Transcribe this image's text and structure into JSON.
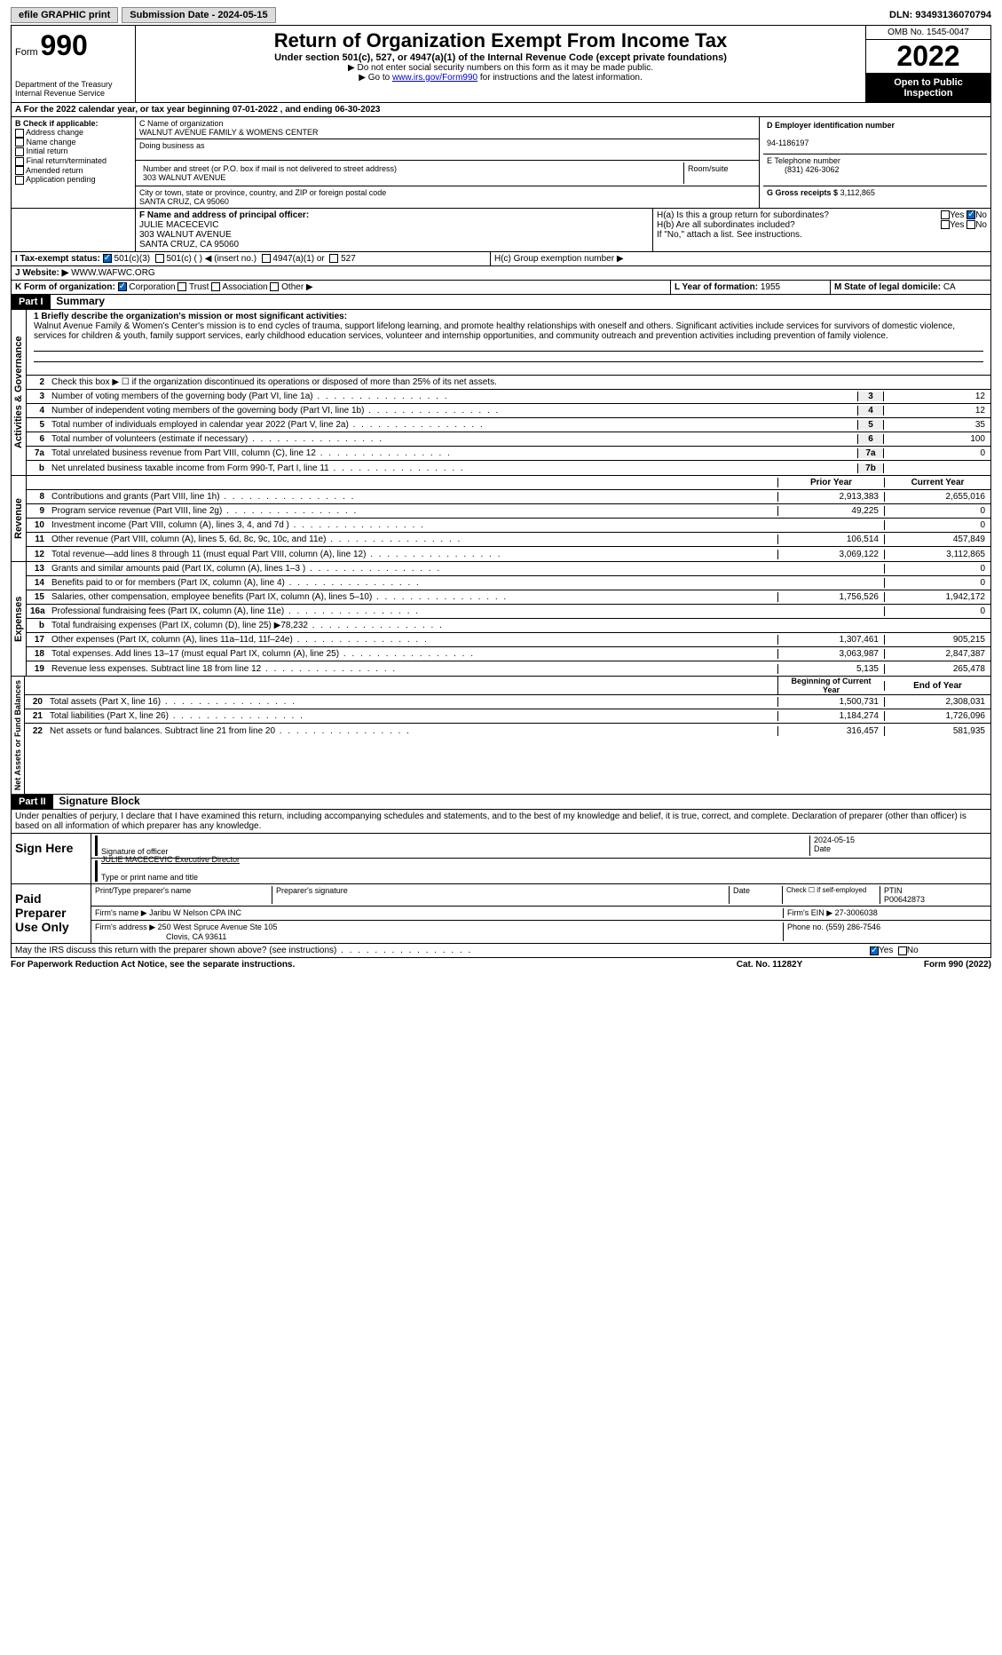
{
  "top": {
    "efile": "efile GRAPHIC print",
    "submission": "Submission Date - 2024-05-15",
    "dln": "DLN: 93493136070794"
  },
  "header": {
    "form": "Form",
    "formno": "990",
    "dept": "Department of the Treasury",
    "irs": "Internal Revenue Service",
    "title": "Return of Organization Exempt From Income Tax",
    "subtitle": "Under section 501(c), 527, or 4947(a)(1) of the Internal Revenue Code (except private foundations)",
    "note1": "Do not enter social security numbers on this form as it may be made public.",
    "note2_pre": "Go to ",
    "note2_link": "www.irs.gov/Form990",
    "note2_post": " for instructions and the latest information.",
    "omb": "OMB No. 1545-0047",
    "year": "2022",
    "open": "Open to Public Inspection"
  },
  "rowA": "A For the 2022 calendar year, or tax year beginning 07-01-2022    , and ending 06-30-2023",
  "B": {
    "label": "B Check if applicable:",
    "opts": [
      "Address change",
      "Name change",
      "Initial return",
      "Final return/terminated",
      "Amended return",
      "Application pending"
    ]
  },
  "C": {
    "name_label": "C Name of organization",
    "name": "WALNUT AVENUE FAMILY & WOMENS CENTER",
    "dba_label": "Doing business as",
    "dba": "",
    "addr_label": "Number and street (or P.O. box if mail is not delivered to street address)",
    "room_label": "Room/suite",
    "addr": "303 WALNUT AVENUE",
    "city_label": "City or town, state or province, country, and ZIP or foreign postal code",
    "city": "SANTA CRUZ, CA  95060"
  },
  "D": {
    "label": "D Employer identification number",
    "val": "94-1186197"
  },
  "E": {
    "label": "E Telephone number",
    "val": "(831) 426-3062"
  },
  "G": {
    "label": "G Gross receipts $",
    "val": "3,112,865"
  },
  "F": {
    "label": "F  Name and address of principal officer:",
    "name": "JULIE MACECEVIC",
    "addr1": "303 WALNUT AVENUE",
    "addr2": "SANTA CRUZ, CA  95060"
  },
  "H": {
    "a": "H(a)  Is this a group return for subordinates?",
    "b": "H(b)  Are all subordinates included?",
    "b_note": "If \"No,\" attach a list. See instructions.",
    "c": "H(c)  Group exemption number ▶"
  },
  "I": {
    "label": "I   Tax-exempt status:",
    "o1": "501(c)(3)",
    "o2": "501(c) (   ) ◀ (insert no.)",
    "o3": "4947(a)(1) or",
    "o4": "527"
  },
  "J": {
    "label": "J   Website: ▶",
    "val": "WWW.WAFWC.ORG"
  },
  "K": {
    "label": "K Form of organization:",
    "o1": "Corporation",
    "o2": "Trust",
    "o3": "Association",
    "o4": "Other ▶"
  },
  "L": {
    "label": "L Year of formation:",
    "val": "1955"
  },
  "M": {
    "label": "M State of legal domicile:",
    "val": "CA"
  },
  "part1": {
    "hdr": "Part I",
    "title": "Summary",
    "l1_label": "1  Briefly describe the organization's mission or most significant activities:",
    "l1_text": "Walnut Avenue Family & Women's Center's mission is to end cycles of trauma, support lifelong learning, and promote healthy relationships with oneself and others. Significant activities include services for survivors of domestic violence, services for children & youth, family support services, early childhood education services, volunteer and internship opportunities, and community outreach and prevention activities including prevention of family violence.",
    "l2": "Check this box ▶ ☐  if the organization discontinued its operations or disposed of more than 25% of its net assets.",
    "vlabel1": "Activities & Governance",
    "vlabel2": "Revenue",
    "vlabel3": "Expenses",
    "vlabel4": "Net Assets or Fund Balances",
    "lines_gov": [
      {
        "n": "3",
        "t": "Number of voting members of the governing body (Part VI, line 1a)",
        "box": "3",
        "v": "12"
      },
      {
        "n": "4",
        "t": "Number of independent voting members of the governing body (Part VI, line 1b)",
        "box": "4",
        "v": "12"
      },
      {
        "n": "5",
        "t": "Total number of individuals employed in calendar year 2022 (Part V, line 2a)",
        "box": "5",
        "v": "35"
      },
      {
        "n": "6",
        "t": "Total number of volunteers (estimate if necessary)",
        "box": "6",
        "v": "100"
      },
      {
        "n": "7a",
        "t": "Total unrelated business revenue from Part VIII, column (C), line 12",
        "box": "7a",
        "v": "0"
      },
      {
        "n": "b",
        "t": "Net unrelated business taxable income from Form 990-T, Part I, line 11",
        "box": "7b",
        "v": ""
      }
    ],
    "col_prior": "Prior Year",
    "col_curr": "Current Year",
    "lines_rev": [
      {
        "n": "8",
        "t": "Contributions and grants (Part VIII, line 1h)",
        "p": "2,913,383",
        "c": "2,655,016"
      },
      {
        "n": "9",
        "t": "Program service revenue (Part VIII, line 2g)",
        "p": "49,225",
        "c": "0"
      },
      {
        "n": "10",
        "t": "Investment income (Part VIII, column (A), lines 3, 4, and 7d )",
        "p": "",
        "c": "0"
      },
      {
        "n": "11",
        "t": "Other revenue (Part VIII, column (A), lines 5, 6d, 8c, 9c, 10c, and 11e)",
        "p": "106,514",
        "c": "457,849"
      },
      {
        "n": "12",
        "t": "Total revenue—add lines 8 through 11 (must equal Part VIII, column (A), line 12)",
        "p": "3,069,122",
        "c": "3,112,865"
      }
    ],
    "lines_exp": [
      {
        "n": "13",
        "t": "Grants and similar amounts paid (Part IX, column (A), lines 1–3 )",
        "p": "",
        "c": "0"
      },
      {
        "n": "14",
        "t": "Benefits paid to or for members (Part IX, column (A), line 4)",
        "p": "",
        "c": "0"
      },
      {
        "n": "15",
        "t": "Salaries, other compensation, employee benefits (Part IX, column (A), lines 5–10)",
        "p": "1,756,526",
        "c": "1,942,172"
      },
      {
        "n": "16a",
        "t": "Professional fundraising fees (Part IX, column (A), line 11e)",
        "p": "",
        "c": "0"
      },
      {
        "n": "b",
        "t": "Total fundraising expenses (Part IX, column (D), line 25) ▶78,232",
        "p": "shaded",
        "c": "shaded"
      },
      {
        "n": "17",
        "t": "Other expenses (Part IX, column (A), lines 11a–11d, 11f–24e)",
        "p": "1,307,461",
        "c": "905,215"
      },
      {
        "n": "18",
        "t": "Total expenses. Add lines 13–17 (must equal Part IX, column (A), line 25)",
        "p": "3,063,987",
        "c": "2,847,387"
      },
      {
        "n": "19",
        "t": "Revenue less expenses. Subtract line 18 from line 12",
        "p": "5,135",
        "c": "265,478"
      }
    ],
    "col_begin": "Beginning of Current Year",
    "col_end": "End of Year",
    "lines_net": [
      {
        "n": "20",
        "t": "Total assets (Part X, line 16)",
        "p": "1,500,731",
        "c": "2,308,031"
      },
      {
        "n": "21",
        "t": "Total liabilities (Part X, line 26)",
        "p": "1,184,274",
        "c": "1,726,096"
      },
      {
        "n": "22",
        "t": "Net assets or fund balances. Subtract line 21 from line 20",
        "p": "316,457",
        "c": "581,935"
      }
    ]
  },
  "part2": {
    "hdr": "Part II",
    "title": "Signature Block",
    "decl": "Under penalties of perjury, I declare that I have examined this return, including accompanying schedules and statements, and to the best of my knowledge and belief, it is true, correct, and complete. Declaration of preparer (other than officer) is based on all information of which preparer has any knowledge.",
    "sign_here": "Sign Here",
    "sig_officer": "Signature of officer",
    "sig_date": "2024-05-15",
    "date_label": "Date",
    "officer_name": "JULIE MACECEVIC Executive Director",
    "officer_label": "Type or print name and title",
    "paid": "Paid Preparer Use Only",
    "prep_name_label": "Print/Type preparer's name",
    "prep_sig_label": "Preparer's signature",
    "prep_date_label": "Date",
    "check_self": "Check ☐ if self-employed",
    "ptin_label": "PTIN",
    "ptin": "P00642873",
    "firm_name_label": "Firm's name    ▶",
    "firm_name": "Jaribu W Nelson CPA INC",
    "firm_ein_label": "Firm's EIN ▶",
    "firm_ein": "27-3006038",
    "firm_addr_label": "Firm's address ▶",
    "firm_addr": "250 West Spruce Avenue Ste 105",
    "firm_city": "Clovis, CA  93611",
    "phone_label": "Phone no.",
    "phone": "(559) 286-7546",
    "may": "May the IRS discuss this return with the preparer shown above? (see instructions)"
  },
  "footer": {
    "left": "For Paperwork Reduction Act Notice, see the separate instructions.",
    "mid": "Cat. No. 11282Y",
    "right": "Form 990 (2022)"
  }
}
